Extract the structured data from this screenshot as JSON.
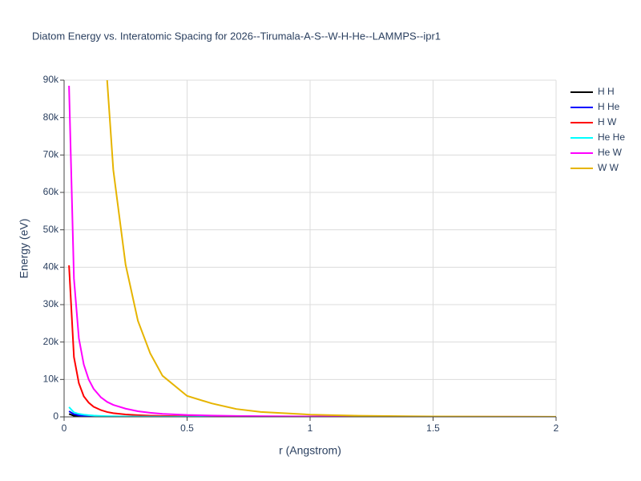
{
  "chart_data": {
    "type": "line",
    "title": "Diatom Energy vs. Interatomic Spacing for 2026--Tirumala-A-S--W-H-He--LAMMPS--ipr1",
    "x_label": "r (Angstrom)",
    "y_label": "Energy (eV)",
    "x": [
      0.02,
      0.04,
      0.06,
      0.08,
      0.1,
      0.12,
      0.15,
      0.175,
      0.2,
      0.25,
      0.3,
      0.35,
      0.4,
      0.5,
      0.6,
      0.7,
      0.8,
      1.0,
      1.2,
      1.5,
      2.0
    ],
    "series": [
      {
        "name": "H H",
        "color": "#000000",
        "values": [
          800,
          300,
          150,
          80,
          40,
          25,
          15,
          10,
          7,
          4,
          2,
          1,
          1,
          0,
          0,
          0,
          0,
          0,
          0,
          0,
          0
        ]
      },
      {
        "name": "H He",
        "color": "#0000ff",
        "values": [
          1500,
          700,
          400,
          250,
          150,
          100,
          60,
          40,
          30,
          15,
          8,
          5,
          3,
          1,
          0,
          0,
          0,
          0,
          0,
          0,
          0
        ]
      },
      {
        "name": "H W",
        "color": "#ff0000",
        "values": [
          40500,
          16000,
          9000,
          5500,
          3800,
          2700,
          1800,
          1300,
          1000,
          650,
          450,
          320,
          240,
          140,
          90,
          60,
          40,
          20,
          10,
          5,
          0
        ]
      },
      {
        "name": "He He",
        "color": "#00ffff",
        "values": [
          2600,
          1200,
          800,
          600,
          450,
          350,
          250,
          200,
          160,
          100,
          70,
          50,
          35,
          20,
          10,
          5,
          3,
          1,
          0,
          0,
          0
        ]
      },
      {
        "name": "He W",
        "color": "#ff00ff",
        "values": [
          88500,
          37000,
          21000,
          14000,
          10000,
          7500,
          5200,
          4000,
          3200,
          2200,
          1500,
          1100,
          800,
          500,
          350,
          250,
          180,
          100,
          60,
          30,
          10
        ]
      },
      {
        "name": "W W",
        "color": "#e6b400",
        "values": [
          null,
          null,
          null,
          null,
          null,
          null,
          null,
          90000,
          66000,
          40700,
          25700,
          17000,
          11000,
          5600,
          3600,
          2100,
          1300,
          600,
          300,
          100,
          30
        ]
      }
    ],
    "xlim": [
      0,
      2
    ],
    "xticks": [
      0,
      0.5,
      1,
      1.5,
      2
    ],
    "ylim": [
      0,
      90000
    ],
    "yticks": [
      0,
      {
        "value": 10000,
        "label": "10k"
      },
      {
        "value": 20000,
        "label": "20k"
      },
      {
        "value": 30000,
        "label": "30k"
      },
      {
        "value": 40000,
        "label": "40k"
      },
      {
        "value": 50000,
        "label": "50k"
      },
      {
        "value": 60000,
        "label": "60k"
      },
      {
        "value": 70000,
        "label": "70k"
      },
      {
        "value": 80000,
        "label": "80k"
      },
      {
        "value": 90000,
        "label": "90k"
      }
    ],
    "grid": true
  }
}
